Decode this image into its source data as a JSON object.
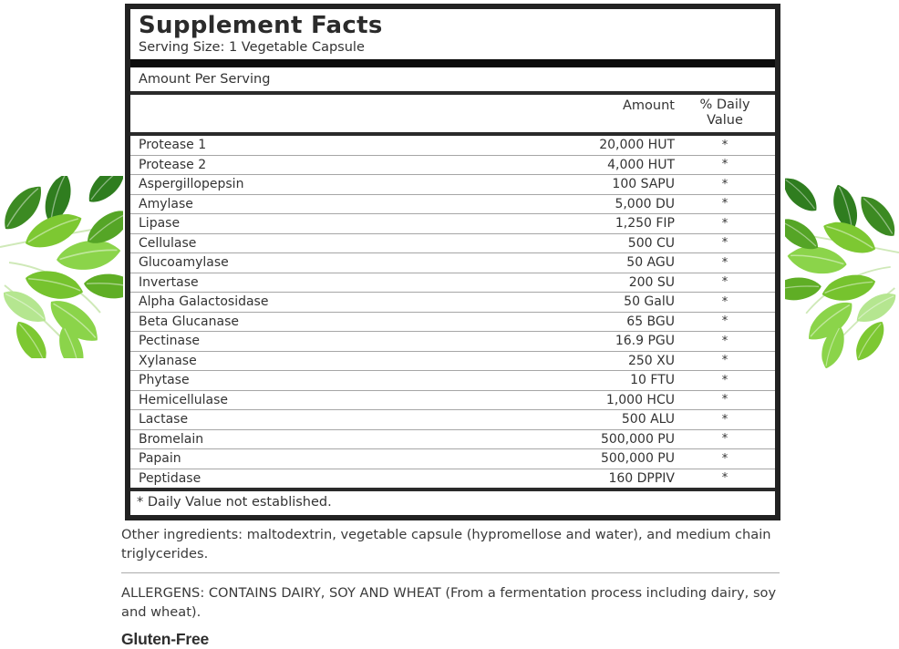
{
  "panel": {
    "title": "Supplement Facts",
    "serving_size": "Serving Size: 1 Vegetable Capsule",
    "amount_per_serving": "Amount Per Serving",
    "columns": {
      "amount": "Amount",
      "daily_value_line1": "% Daily",
      "daily_value_line2": "Value"
    },
    "rows": [
      {
        "name": "Protease 1",
        "amount": "20,000 HUT",
        "daily_value": "*"
      },
      {
        "name": "Protease 2",
        "amount": "4,000 HUT",
        "daily_value": "*"
      },
      {
        "name": "Aspergillopepsin",
        "amount": "100 SAPU",
        "daily_value": "*"
      },
      {
        "name": "Amylase",
        "amount": "5,000 DU",
        "daily_value": "*"
      },
      {
        "name": "Lipase",
        "amount": "1,250 FIP",
        "daily_value": "*"
      },
      {
        "name": "Cellulase",
        "amount": "500 CU",
        "daily_value": "*"
      },
      {
        "name": "Glucoamylase",
        "amount": "50 AGU",
        "daily_value": "*"
      },
      {
        "name": "Invertase",
        "amount": "200 SU",
        "daily_value": "*"
      },
      {
        "name": "Alpha Galactosidase",
        "amount": "50 GalU",
        "daily_value": "*"
      },
      {
        "name": "Beta Glucanase",
        "amount": "65 BGU",
        "daily_value": "*"
      },
      {
        "name": "Pectinase",
        "amount": "16.9 PGU",
        "daily_value": "*"
      },
      {
        "name": "Xylanase",
        "amount": "250 XU",
        "daily_value": "*"
      },
      {
        "name": "Phytase",
        "amount": "10 FTU",
        "daily_value": "*"
      },
      {
        "name": "Hemicellulase",
        "amount": "1,000 HCU",
        "daily_value": "*"
      },
      {
        "name": "Lactase",
        "amount": "500 ALU",
        "daily_value": "*"
      },
      {
        "name": "Bromelain",
        "amount": "500,000 PU",
        "daily_value": "*"
      },
      {
        "name": "Papain",
        "amount": "500,000 PU",
        "daily_value": "*"
      },
      {
        "name": "Peptidase",
        "amount": "160 DPPIV",
        "daily_value": "*"
      }
    ],
    "footnote": "* Daily Value not established."
  },
  "notes": {
    "other_ingredients": "Other ingredients: maltodextrin, vegetable capsule (hypromellose and water), and medium chain triglycerides.",
    "allergens": "ALLERGENS: CONTAINS DAIRY, SOY AND WHEAT (From a fermentation process including dairy, soy and wheat).",
    "gluten_free": "Gluten-Free"
  },
  "colors": {
    "panel_border": "#222222",
    "thick_divider": "#0c0c0c",
    "row_separator": "#a6a6a6",
    "text": "#333333",
    "leaf_bright": "#8bd44a",
    "leaf_mid": "#76c32e",
    "leaf_dark": "#2f7d1f",
    "leaf_pale": "#b5e690"
  },
  "decorations": {
    "left": "leaf-cluster",
    "right": "leaf-cluster"
  }
}
